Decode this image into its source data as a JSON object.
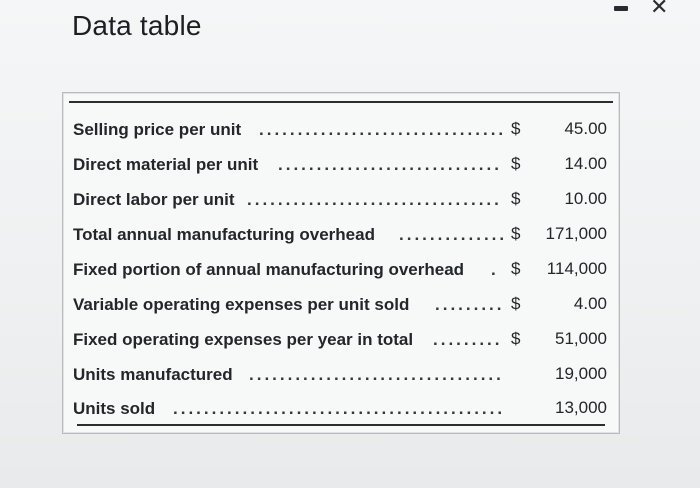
{
  "window": {
    "title": "Data table"
  },
  "table": {
    "rows": [
      {
        "label": "Selling price per unit",
        "currency": "$",
        "value": "45.00"
      },
      {
        "label": "Direct material per unit",
        "currency": "$",
        "value": "14.00"
      },
      {
        "label": "Direct labor per unit",
        "currency": "$",
        "value": "10.00"
      },
      {
        "label": "Total annual manufacturing overhead",
        "currency": "$",
        "value": "171,000"
      },
      {
        "label": "Fixed portion of annual manufacturing overhead",
        "currency": "$",
        "value": "114,000"
      },
      {
        "label": "Variable operating expenses per unit sold",
        "currency": "$",
        "value": "4.00"
      },
      {
        "label": "Fixed operating expenses per year in total",
        "currency": "$",
        "value": "51,000"
      },
      {
        "label": "Units manufactured",
        "currency": "",
        "value": "19,000"
      },
      {
        "label": "Units sold",
        "currency": "",
        "value": "13,000"
      }
    ]
  }
}
